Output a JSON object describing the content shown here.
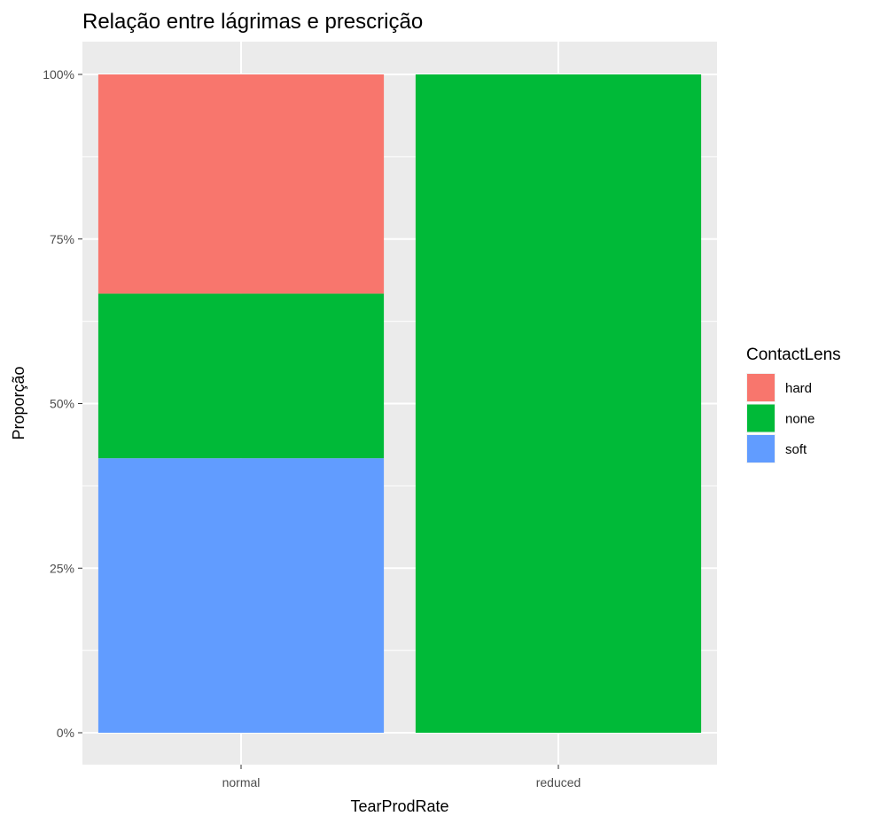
{
  "chart_data": {
    "type": "bar",
    "stacked": true,
    "title": "Relação entre lágrimas e prescrição",
    "xlabel": "TearProdRate",
    "ylabel": "Proporção",
    "categories": [
      "normal",
      "reduced"
    ],
    "ylim": [
      0,
      1
    ],
    "y_ticks": [
      0,
      0.25,
      0.5,
      0.75,
      1.0
    ],
    "y_tick_labels": [
      "0%",
      "25%",
      "50%",
      "75%",
      "100%"
    ],
    "series": [
      {
        "name": "hard",
        "color": "#F8766D",
        "values": [
          0.333,
          0.0
        ]
      },
      {
        "name": "none",
        "color": "#00BA38",
        "values": [
          0.25,
          1.0
        ]
      },
      {
        "name": "soft",
        "color": "#619CFF",
        "values": [
          0.417,
          0.0
        ]
      }
    ],
    "stack_order_bottom_to_top": [
      "soft",
      "none",
      "hard"
    ],
    "legend": {
      "title": "ContactLens",
      "placement": "right"
    },
    "grid": true,
    "panel_background": "#EBEBEB"
  }
}
